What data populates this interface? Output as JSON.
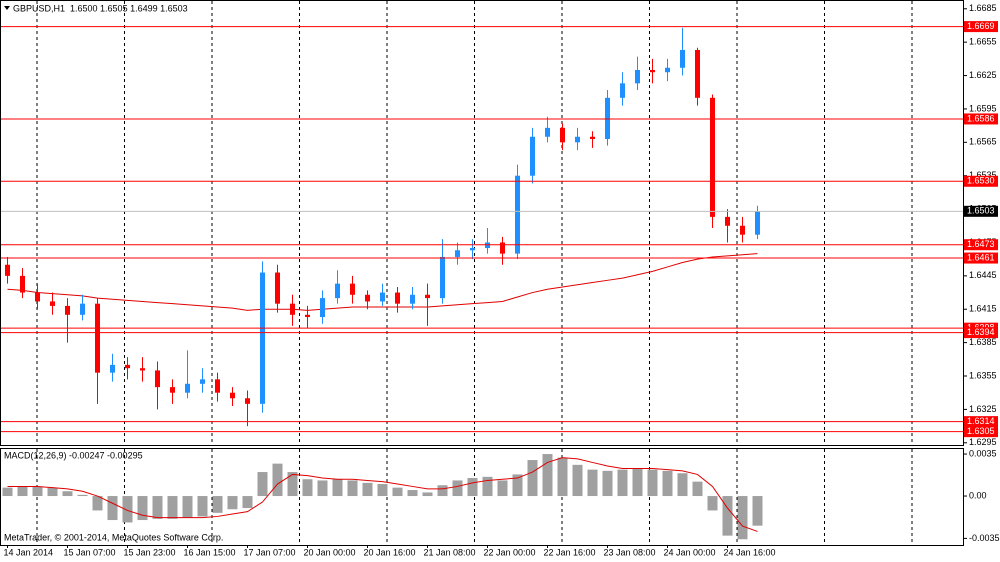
{
  "header": "GBPUSD,H1  1.6500 1.6505 1.6499 1.6503",
  "copyright": "MetaTrader, © 2001-2014, MetaQuotes Software Corp.",
  "chart_data": [
    {
      "type": "candlestick",
      "categories": [
        "14 Jan 2014",
        null,
        null,
        null,
        "15 Jan 07:00",
        null,
        null,
        null,
        "15 Jan 23:00",
        null,
        null,
        null,
        "16 Jan 15:00",
        null,
        null,
        null,
        "17 Jan 07:00",
        null,
        null,
        null,
        "20 Jan 00:00",
        null,
        null,
        null,
        "20 Jan 16:00",
        null,
        null,
        null,
        "21 Jan 08:00",
        null,
        null,
        null,
        "22 Jan 00:00",
        null,
        null,
        null,
        "22 Jan 16:00",
        null,
        null,
        null,
        "23 Jan 08:00",
        null,
        null,
        null,
        "24 Jan 00:00",
        null,
        null,
        null,
        "24 Jan 16:00",
        null,
        null
      ],
      "open": [
        1.6455,
        1.6445,
        1.643,
        1.6422,
        1.6418,
        1.641,
        1.642,
        1.6358,
        1.6365,
        1.6362,
        1.636,
        1.6345,
        1.634,
        1.6348,
        1.6352,
        1.634,
        1.6335,
        1.633,
        1.6448,
        1.642,
        1.641,
        1.6408,
        1.6425,
        1.6438,
        1.6428,
        1.6422,
        1.643,
        1.642,
        1.6428,
        1.6425,
        1.6462,
        1.6468,
        1.647,
        1.6475,
        1.6465,
        1.6535,
        1.657,
        1.6578,
        1.6565,
        1.657,
        1.6568,
        1.6605,
        1.6618,
        1.663,
        1.6628,
        1.6632,
        1.6648,
        1.6605,
        1.6498,
        1.649,
        1.6482
      ],
      "high": [
        1.6462,
        1.6452,
        1.6438,
        1.643,
        1.6425,
        1.6428,
        1.6425,
        1.6375,
        1.6372,
        1.6372,
        1.6368,
        1.6352,
        1.6378,
        1.6362,
        1.6358,
        1.6345,
        1.6342,
        1.6458,
        1.6455,
        1.6428,
        1.6418,
        1.6432,
        1.645,
        1.6445,
        1.6432,
        1.6438,
        1.6435,
        1.6435,
        1.6438,
        1.6478,
        1.6475,
        1.6478,
        1.6488,
        1.648,
        1.6545,
        1.6578,
        1.6588,
        1.6582,
        1.6578,
        1.6575,
        1.6612,
        1.6628,
        1.6642,
        1.664,
        1.664,
        1.6668,
        1.665,
        1.6608,
        1.6505,
        1.6498,
        1.6508
      ],
      "low": [
        1.6438,
        1.6425,
        1.6415,
        1.641,
        1.6385,
        1.6405,
        1.633,
        1.635,
        1.6352,
        1.635,
        1.6325,
        1.633,
        1.6335,
        1.634,
        1.6332,
        1.6328,
        1.631,
        1.6322,
        1.6412,
        1.64,
        1.6398,
        1.6402,
        1.642,
        1.642,
        1.6415,
        1.6418,
        1.6412,
        1.6415,
        1.64,
        1.642,
        1.6455,
        1.646,
        1.6465,
        1.6455,
        1.646,
        1.6528,
        1.6565,
        1.6558,
        1.6558,
        1.656,
        1.6562,
        1.6598,
        1.6612,
        1.6618,
        1.662,
        1.6625,
        1.6598,
        1.6488,
        1.6475,
        1.6475,
        1.6478
      ],
      "close": [
        1.6445,
        1.643,
        1.6422,
        1.6418,
        1.641,
        1.642,
        1.6358,
        1.6365,
        1.6362,
        1.636,
        1.6345,
        1.634,
        1.6348,
        1.6352,
        1.634,
        1.6335,
        1.633,
        1.6448,
        1.642,
        1.641,
        1.6408,
        1.6425,
        1.6438,
        1.6428,
        1.6422,
        1.643,
        1.642,
        1.6428,
        1.6425,
        1.6462,
        1.6468,
        1.647,
        1.6475,
        1.6465,
        1.6535,
        1.657,
        1.6578,
        1.6565,
        1.657,
        1.6568,
        1.6605,
        1.6618,
        1.663,
        1.6628,
        1.6632,
        1.6648,
        1.6605,
        1.6498,
        1.649,
        1.6482,
        1.6503
      ],
      "up_color": "#1e90ff",
      "down_color": "#ff0000",
      "moving_average": {
        "color": "#e00000",
        "values": [
          1.6433,
          1.6432,
          1.643,
          1.6429,
          1.6428,
          1.6427,
          1.6425,
          1.6424,
          1.6423,
          1.6422,
          1.6421,
          1.642,
          1.6419,
          1.6418,
          1.6417,
          1.6416,
          1.6414,
          1.6415,
          1.6415,
          1.6415,
          1.6414,
          1.6415,
          1.6416,
          1.6417,
          1.6417,
          1.6417,
          1.6417,
          1.6417,
          1.6417,
          1.6418,
          1.6419,
          1.642,
          1.6421,
          1.6422,
          1.6426,
          1.643,
          1.6433,
          1.6435,
          1.6437,
          1.6439,
          1.6441,
          1.6443,
          1.6446,
          1.6449,
          1.6453,
          1.6457,
          1.646,
          1.6462,
          1.6463,
          1.6464,
          1.6465
        ]
      },
      "levels": [
        1.6669,
        1.6586,
        {
          "value": 1.653,
          "label": "1.6530"
        },
        1.6473,
        1.6461,
        1.6398,
        1.6394,
        1.6314,
        1.6305
      ],
      "level_color": "#ff0000",
      "ylim": [
        1.6293,
        1.6692
      ],
      "yticks": [
        1.6685,
        1.6655,
        1.6625,
        1.6595,
        1.6565,
        1.6535,
        1.6505,
        1.6475,
        1.6445,
        1.6415,
        1.6385,
        1.6355,
        1.6325,
        1.6295
      ]
    },
    {
      "type": "macd",
      "title": "MACD(12,26,9) -0.00247 -0.00295",
      "histogram": {
        "color": "#a0a0a0",
        "values": [
          0.0007,
          0.0008,
          0.0008,
          0.0007,
          0.0004,
          0.0001,
          -0.0012,
          -0.002,
          -0.0022,
          -0.002,
          -0.0019,
          -0.0019,
          -0.0018,
          -0.0017,
          -0.0014,
          -0.0011,
          -0.001,
          0.002,
          0.0027,
          0.002,
          0.0014,
          0.0013,
          0.0014,
          0.0013,
          0.0011,
          0.001,
          0.0007,
          0.0005,
          0.0003,
          0.0009,
          0.0013,
          0.0015,
          0.0016,
          0.0013,
          0.0018,
          0.003,
          0.0035,
          0.0032,
          0.0026,
          0.0022,
          0.0021,
          0.0022,
          0.0023,
          0.0022,
          0.0021,
          0.0019,
          0.0012,
          -0.0012,
          -0.0033,
          -0.0036,
          -0.00247
        ]
      },
      "signal": {
        "color": "#e00000",
        "values": [
          0.0008,
          0.0008,
          0.0008,
          0.0007,
          0.0006,
          0.0004,
          0.0,
          -0.0006,
          -0.0012,
          -0.0016,
          -0.0018,
          -0.0018,
          -0.0018,
          -0.0018,
          -0.0017,
          -0.0015,
          -0.0013,
          -0.0005,
          0.001,
          0.0018,
          0.0017,
          0.0015,
          0.0014,
          0.0014,
          0.0013,
          0.0012,
          0.001,
          0.0008,
          0.0006,
          0.0006,
          0.0008,
          0.0011,
          0.0013,
          0.0014,
          0.0015,
          0.002,
          0.0028,
          0.0032,
          0.0031,
          0.0028,
          0.0025,
          0.0023,
          0.0023,
          0.0023,
          0.0022,
          0.0021,
          0.0018,
          0.0008,
          -0.001,
          -0.0025,
          -0.00295
        ]
      },
      "ylim": [
        -0.00408,
        0.00392
      ],
      "yticks": [
        0.0035,
        {
          "value": 0,
          "label": "0.00"
        },
        -0.00353
      ]
    }
  ]
}
